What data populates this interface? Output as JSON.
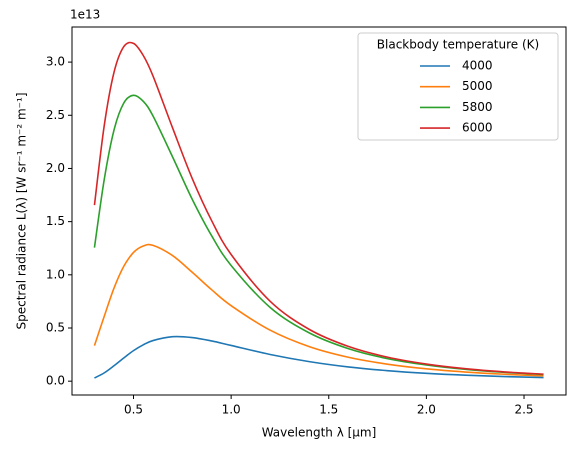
{
  "chart_data": {
    "type": "line",
    "x_label": "Wavelength λ [µm]",
    "y_label": "Spectral radiance L(λ) [W sr⁻¹ m⁻² m⁻¹]",
    "y_offset_text": "1e13",
    "legend_title": "Blackbody temperature (K)",
    "legend_position": "upper right",
    "x": [
      0.3,
      0.35,
      0.4,
      0.45,
      0.5,
      0.55,
      0.6,
      0.7,
      0.8,
      0.9,
      1.0,
      1.2,
      1.4,
      1.6,
      1.8,
      2.0,
      2.2,
      2.4,
      2.6
    ],
    "series": [
      {
        "name": "4000",
        "color": "#1f77b4",
        "values": [
          0.03,
          0.078,
          0.145,
          0.218,
          0.287,
          0.342,
          0.382,
          0.418,
          0.41,
          0.378,
          0.336,
          0.251,
          0.184,
          0.134,
          0.099,
          0.074,
          0.056,
          0.043,
          0.034
        ]
      },
      {
        "name": "5000",
        "color": "#ff7f0e",
        "values": [
          0.334,
          0.609,
          0.874,
          1.079,
          1.21,
          1.271,
          1.277,
          1.181,
          1.025,
          0.86,
          0.71,
          0.479,
          0.325,
          0.225,
          0.16,
          0.116,
          0.086,
          0.065,
          0.05
        ]
      },
      {
        "name": "5800",
        "color": "#2ca02c",
        "values": [
          1.256,
          1.895,
          2.36,
          2.614,
          2.688,
          2.631,
          2.493,
          2.109,
          1.713,
          1.368,
          1.088,
          0.693,
          0.454,
          0.306,
          0.212,
          0.152,
          0.111,
          0.083,
          0.063
        ]
      },
      {
        "name": "6000",
        "color": "#d62728",
        "values": [
          1.655,
          2.402,
          2.903,
          3.145,
          3.176,
          3.062,
          2.869,
          2.382,
          1.909,
          1.51,
          1.191,
          0.751,
          0.487,
          0.327,
          0.226,
          0.161,
          0.117,
          0.087,
          0.066
        ]
      }
    ],
    "xlim": [
      0.185,
      2.715
    ],
    "ylim": [
      -0.13,
      3.33
    ],
    "xticks": [
      0.5,
      {
        "value": 1.0,
        "label": "1.0"
      },
      1.5,
      {
        "value": 2.0,
        "label": "2.0"
      },
      2.5
    ],
    "yticks": [
      {
        "value": 0,
        "label": "0.0"
      },
      0.5,
      {
        "value": 1.0,
        "label": "1.0"
      },
      1.5,
      {
        "value": 2.0,
        "label": "2.0"
      },
      2.5,
      {
        "value": 3.0,
        "label": "3.0"
      }
    ],
    "grid": false
  }
}
